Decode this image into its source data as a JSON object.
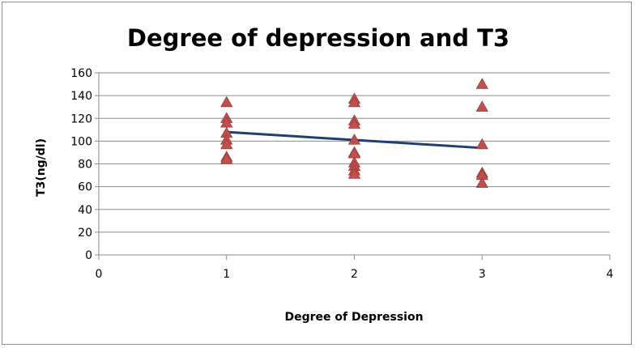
{
  "chart_data": {
    "type": "scatter",
    "title": "Degree of depression and T3",
    "xlabel": "Degree of Depression",
    "ylabel": "T3(ng/dl)",
    "xlim": [
      0,
      4
    ],
    "ylim": [
      0,
      160
    ],
    "x_ticks": [
      0,
      1,
      2,
      3,
      4
    ],
    "y_ticks": [
      0,
      20,
      40,
      60,
      80,
      100,
      120,
      140,
      160
    ],
    "grid": "horizontal",
    "legend": "none",
    "colors": {
      "points": "#c0504d",
      "point_edge": "#9a3b39",
      "trendline": "#1f3f73",
      "gridline": "#8a8a8a",
      "axis": "#8a8a8a"
    },
    "series": [
      {
        "marker": "triangle",
        "points": [
          [
            1,
            134
          ],
          [
            1,
            120
          ],
          [
            1,
            116
          ],
          [
            1,
            107
          ],
          [
            1,
            101
          ],
          [
            1,
            97
          ],
          [
            1,
            86
          ],
          [
            1,
            84
          ],
          [
            2,
            137
          ],
          [
            2,
            134
          ],
          [
            2,
            118
          ],
          [
            2,
            115
          ],
          [
            2,
            101
          ],
          [
            2,
            90
          ],
          [
            2,
            89
          ],
          [
            2,
            81
          ],
          [
            2,
            78
          ],
          [
            2,
            74
          ],
          [
            2,
            71
          ],
          [
            3,
            150
          ],
          [
            3,
            130
          ],
          [
            3,
            97
          ],
          [
            3,
            72
          ],
          [
            3,
            70
          ],
          [
            3,
            63
          ]
        ]
      }
    ],
    "trendline": [
      [
        1,
        108
      ],
      [
        3,
        94
      ]
    ]
  }
}
